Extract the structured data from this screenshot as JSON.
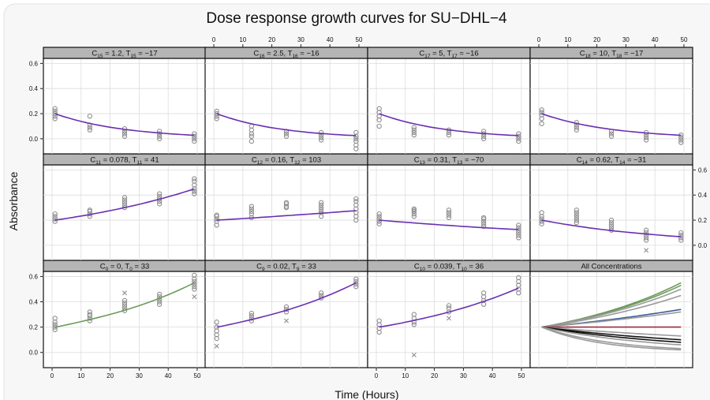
{
  "chart_data": {
    "type": "scatter",
    "title": "Dose response growth curves for SU−DHL−4",
    "xlabel": "Time (Hours)",
    "ylabel": "Absorbance",
    "xlim": [
      -3,
      53
    ],
    "ylim": [
      -0.12,
      0.64
    ],
    "x_ticks": [
      0,
      10,
      20,
      30,
      40,
      50
    ],
    "y_ticks": [
      0.0,
      0.2,
      0.4,
      0.6
    ],
    "y_tick_labels": [
      "0.0",
      "0.2",
      "0.4",
      "0.6"
    ],
    "times": [
      1,
      13,
      25,
      37,
      49
    ],
    "grid": true,
    "layout": "4 columns x 3 rows, panels read left-to-right from the bottom row up",
    "series": [
      {
        "subscript": "0",
        "conc": "0",
        "doubling": "33",
        "color": "#6b9a5a",
        "fit": [
          [
            1,
            0.2
          ],
          [
            13,
            0.26
          ],
          [
            25,
            0.333
          ],
          [
            37,
            0.428
          ],
          [
            49,
            0.55
          ]
        ],
        "points": [
          [
            1,
            [
              0.18,
              0.2,
              0.22,
              0.24,
              0.27
            ]
          ],
          [
            13,
            [
              0.25,
              0.27,
              0.29,
              0.3,
              0.32
            ]
          ],
          [
            25,
            [
              0.33,
              0.35,
              0.37,
              0.39,
              0.41
            ]
          ],
          [
            37,
            [
              0.38,
              0.4,
              0.42,
              0.44,
              0.46
            ]
          ],
          [
            49,
            [
              0.5,
              0.52,
              0.54,
              0.56,
              0.58,
              0.61
            ]
          ]
        ],
        "outliers": [
          [
            25,
            0.47
          ],
          [
            49,
            0.44
          ]
        ]
      },
      {
        "subscript": "9",
        "conc": "0.02",
        "doubling": "33",
        "color": "#6a2fb0",
        "fit": [
          [
            1,
            0.2
          ],
          [
            13,
            0.26
          ],
          [
            25,
            0.333
          ],
          [
            37,
            0.428
          ],
          [
            49,
            0.55
          ]
        ],
        "points": [
          [
            1,
            [
              0.11,
              0.14,
              0.17,
              0.2,
              0.24
            ]
          ],
          [
            13,
            [
              0.25,
              0.27,
              0.29,
              0.31
            ]
          ],
          [
            25,
            [
              0.32,
              0.34,
              0.36
            ]
          ],
          [
            37,
            [
              0.43,
              0.45,
              0.47
            ]
          ],
          [
            49,
            [
              0.52,
              0.54,
              0.56,
              0.58
            ]
          ]
        ],
        "outliers": [
          [
            1,
            0.05
          ],
          [
            25,
            0.25
          ]
        ]
      },
      {
        "subscript": "10",
        "conc": "0.039",
        "doubling": "36",
        "color": "#6a2fb0",
        "fit": [
          [
            1,
            0.2
          ],
          [
            13,
            0.253
          ],
          [
            25,
            0.319
          ],
          [
            37,
            0.403
          ],
          [
            49,
            0.508
          ]
        ],
        "points": [
          [
            1,
            [
              0.16,
              0.19,
              0.22,
              0.25
            ]
          ],
          [
            13,
            [
              0.22,
              0.24,
              0.27,
              0.3
            ]
          ],
          [
            25,
            [
              0.32,
              0.35,
              0.37
            ]
          ],
          [
            37,
            [
              0.38,
              0.41,
              0.44,
              0.47
            ]
          ],
          [
            49,
            [
              0.47,
              0.5,
              0.53,
              0.56,
              0.59
            ]
          ]
        ],
        "outliers": [
          [
            13,
            -0.02
          ],
          [
            25,
            0.27
          ]
        ]
      },
      {
        "subscript": "11",
        "conc": "0.078",
        "doubling": "41",
        "color": "#6a2fb0",
        "fit": [
          [
            1,
            0.2
          ],
          [
            13,
            0.245
          ],
          [
            25,
            0.3
          ],
          [
            37,
            0.367
          ],
          [
            49,
            0.449
          ]
        ],
        "points": [
          [
            1,
            [
              0.19,
              0.21,
              0.23,
              0.25
            ]
          ],
          [
            13,
            [
              0.23,
              0.25,
              0.27,
              0.28
            ]
          ],
          [
            25,
            [
              0.3,
              0.32,
              0.34,
              0.36,
              0.38
            ]
          ],
          [
            37,
            [
              0.33,
              0.35,
              0.37,
              0.39,
              0.41
            ]
          ],
          [
            49,
            [
              0.41,
              0.43,
              0.45,
              0.48,
              0.51,
              0.53
            ]
          ]
        ],
        "outliers": []
      },
      {
        "subscript": "12",
        "conc": "0.16",
        "doubling": "103",
        "color": "#6a2fb0",
        "fit": [
          [
            1,
            0.2
          ],
          [
            13,
            0.217
          ],
          [
            25,
            0.236
          ],
          [
            37,
            0.255
          ],
          [
            49,
            0.276
          ]
        ],
        "points": [
          [
            1,
            [
              0.16,
              0.19,
              0.21,
              0.23,
              0.24
            ]
          ],
          [
            13,
            [
              0.22,
              0.25,
              0.27,
              0.29,
              0.31
            ]
          ],
          [
            25,
            [
              0.3,
              0.31,
              0.33,
              0.34
            ]
          ],
          [
            37,
            [
              0.23,
              0.26,
              0.28,
              0.3,
              0.32,
              0.34
            ]
          ],
          [
            49,
            [
              0.2,
              0.23,
              0.26,
              0.29,
              0.32,
              0.35,
              0.37
            ]
          ]
        ],
        "outliers": []
      },
      {
        "subscript": "13",
        "conc": "0.31",
        "doubling": "−70",
        "color": "#6a2fb0",
        "fit": [
          [
            1,
            0.2
          ],
          [
            13,
            0.178
          ],
          [
            25,
            0.158
          ],
          [
            37,
            0.14
          ],
          [
            49,
            0.125
          ]
        ],
        "points": [
          [
            1,
            [
              0.17,
              0.19,
              0.21,
              0.23,
              0.25
            ]
          ],
          [
            13,
            [
              0.23,
              0.25,
              0.27,
              0.28,
              0.29
            ]
          ],
          [
            25,
            [
              0.22,
              0.24,
              0.26,
              0.28
            ]
          ],
          [
            37,
            [
              0.15,
              0.17,
              0.19,
              0.21,
              0.22
            ]
          ],
          [
            49,
            [
              0.06,
              0.08,
              0.1,
              0.12,
              0.14,
              0.16
            ]
          ]
        ],
        "outliers": []
      },
      {
        "subscript": "14",
        "conc": "0.62",
        "doubling": "−31",
        "color": "#6a2fb0",
        "fit": [
          [
            1,
            0.2
          ],
          [
            13,
            0.153
          ],
          [
            25,
            0.117
          ],
          [
            37,
            0.09
          ],
          [
            49,
            0.068
          ]
        ],
        "points": [
          [
            1,
            [
              0.17,
              0.19,
              0.21,
              0.23,
              0.26
            ]
          ],
          [
            13,
            [
              0.18,
              0.2,
              0.22,
              0.24,
              0.26,
              0.28
            ]
          ],
          [
            25,
            [
              0.12,
              0.14,
              0.16,
              0.18,
              0.2
            ]
          ],
          [
            37,
            [
              0.04,
              0.06,
              0.08,
              0.1,
              0.12
            ]
          ],
          [
            49,
            [
              0.04,
              0.06,
              0.08,
              0.1
            ]
          ]
        ],
        "outliers": [
          [
            37,
            -0.04
          ]
        ]
      },
      {
        "subscript": "15",
        "conc": "1.2",
        "doubling": "−17",
        "color": "#6a2fb0",
        "fit": [
          [
            1,
            0.2
          ],
          [
            13,
            0.122
          ],
          [
            25,
            0.075
          ],
          [
            37,
            0.046
          ],
          [
            49,
            0.028
          ]
        ],
        "points": [
          [
            1,
            [
              0.16,
              0.18,
              0.2,
              0.22,
              0.24
            ]
          ],
          [
            13,
            [
              0.07,
              0.09,
              0.11,
              0.18
            ]
          ],
          [
            25,
            [
              0.02,
              0.04,
              0.06,
              0.08
            ]
          ],
          [
            37,
            [
              0.0,
              0.02,
              0.04,
              0.06
            ]
          ],
          [
            49,
            [
              -0.02,
              0.0,
              0.02,
              0.04
            ]
          ]
        ],
        "outliers": []
      },
      {
        "subscript": "16",
        "conc": "2.5",
        "doubling": "−16",
        "color": "#6a2fb0",
        "fit": [
          [
            1,
            0.2
          ],
          [
            13,
            0.119
          ],
          [
            25,
            0.071
          ],
          [
            37,
            0.042
          ],
          [
            49,
            0.025
          ]
        ],
        "points": [
          [
            1,
            [
              0.16,
              0.18,
              0.2,
              0.22
            ]
          ],
          [
            13,
            [
              -0.02,
              0.02,
              0.04,
              0.07,
              0.1
            ]
          ],
          [
            25,
            [
              0.02,
              0.04,
              0.06
            ]
          ],
          [
            37,
            [
              -0.01,
              0.01,
              0.03,
              0.05
            ]
          ],
          [
            49,
            [
              -0.08,
              -0.05,
              -0.02,
              0.0,
              0.02,
              0.05
            ]
          ]
        ],
        "outliers": []
      },
      {
        "subscript": "17",
        "conc": "5",
        "doubling": "−16",
        "color": "#6a2fb0",
        "fit": [
          [
            1,
            0.2
          ],
          [
            13,
            0.119
          ],
          [
            25,
            0.071
          ],
          [
            37,
            0.042
          ],
          [
            49,
            0.025
          ]
        ],
        "points": [
          [
            1,
            [
              0.1,
              0.15,
              0.18,
              0.21,
              0.24
            ]
          ],
          [
            13,
            [
              0.03,
              0.05,
              0.07,
              0.09
            ]
          ],
          [
            25,
            [
              0.03,
              0.05,
              0.07
            ]
          ],
          [
            37,
            [
              0.0,
              0.02,
              0.04,
              0.06
            ]
          ],
          [
            49,
            [
              -0.02,
              0.0,
              0.02,
              0.04
            ]
          ]
        ],
        "outliers": []
      },
      {
        "subscript": "18",
        "conc": "10",
        "doubling": "−17",
        "color": "#6a2fb0",
        "fit": [
          [
            1,
            0.2
          ],
          [
            13,
            0.122
          ],
          [
            25,
            0.075
          ],
          [
            37,
            0.046
          ],
          [
            49,
            0.028
          ]
        ],
        "points": [
          [
            1,
            [
              0.12,
              0.16,
              0.19,
              0.21,
              0.23
            ]
          ],
          [
            13,
            [
              0.07,
              0.09,
              0.11,
              0.13
            ]
          ],
          [
            25,
            [
              0.02,
              0.04,
              0.06
            ]
          ],
          [
            37,
            [
              -0.01,
              0.01,
              0.03,
              0.05
            ]
          ],
          [
            49,
            [
              -0.03,
              -0.01,
              0.01,
              0.03
            ]
          ]
        ],
        "outliers": []
      }
    ],
    "summary_panel": {
      "label": "All Concentrations",
      "curves": [
        {
          "end": 0.55,
          "color": "#6b9a5a"
        },
        {
          "end": 0.53,
          "color": "#6b9a5a"
        },
        {
          "end": 0.5,
          "color": "#9a9a9a"
        },
        {
          "end": 0.45,
          "color": "#9a9a9a"
        },
        {
          "end": 0.34,
          "color": "#3d5f96"
        },
        {
          "end": 0.32,
          "color": "#9a9a9a"
        },
        {
          "end": 0.2,
          "color": "#9c2a3a"
        },
        {
          "end": 0.13,
          "color": "#9a9a9a"
        },
        {
          "end": 0.1,
          "color": "#111111"
        },
        {
          "end": 0.08,
          "color": "#111111"
        },
        {
          "end": 0.06,
          "color": "#9a9a9a"
        },
        {
          "end": 0.03,
          "color": "#9a9a9a"
        },
        {
          "end": 0.02,
          "color": "#9a9a9a"
        }
      ]
    }
  }
}
